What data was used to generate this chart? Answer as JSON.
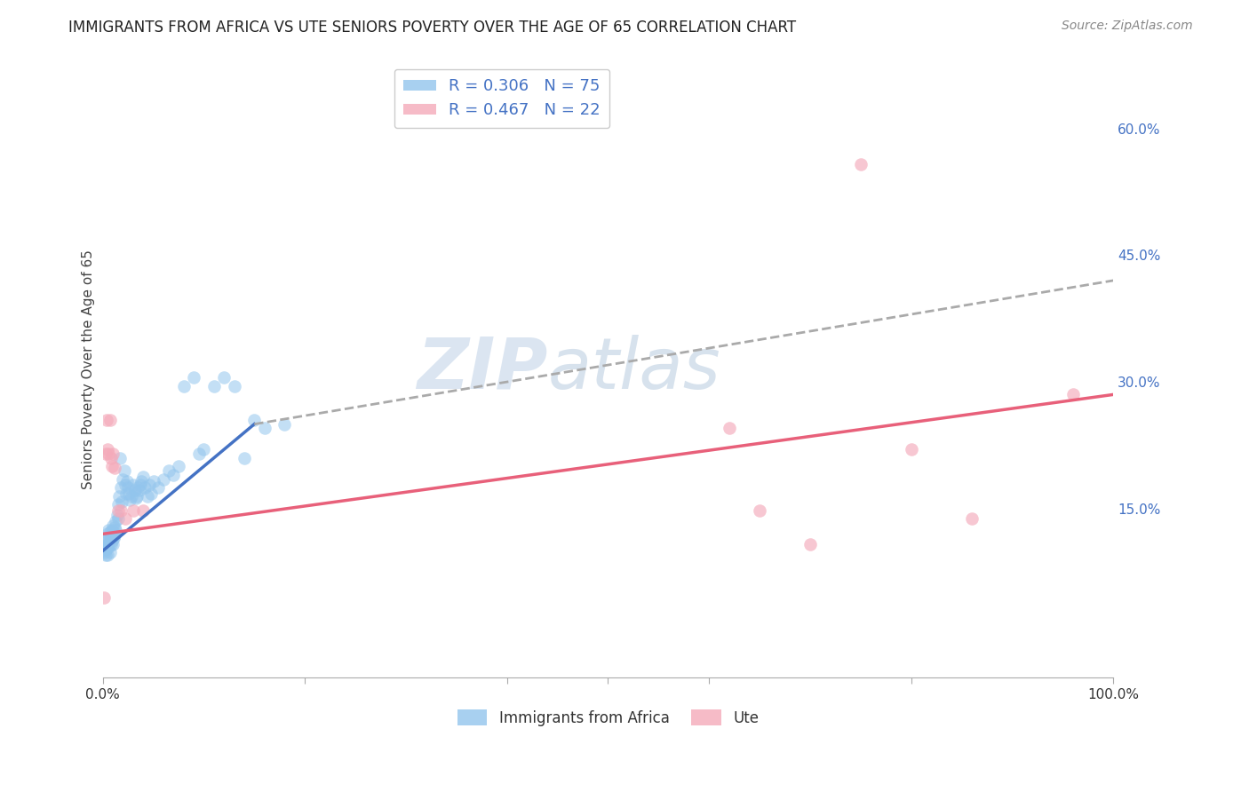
{
  "title": "IMMIGRANTS FROM AFRICA VS UTE SENIORS POVERTY OVER THE AGE OF 65 CORRELATION CHART",
  "source": "Source: ZipAtlas.com",
  "xlabel": "Immigrants from Africa",
  "ylabel": "Seniors Poverty Over the Age of 65",
  "watermark_zip": "ZIP",
  "watermark_atlas": "atlas",
  "xlim": [
    0.0,
    1.0
  ],
  "ylim": [
    -0.05,
    0.68
  ],
  "blue_R": 0.306,
  "blue_N": 75,
  "pink_R": 0.467,
  "pink_N": 22,
  "blue_color": "#92C5ED",
  "pink_color": "#F4AABA",
  "blue_line_color": "#4472C4",
  "pink_line_color": "#E8607A",
  "dashed_line_color": "#AAAAAA",
  "background_color": "#FFFFFF",
  "grid_color": "#C8C8C8",
  "legend_text_color": "#4472C4",
  "blue_line_x0": 0.0,
  "blue_line_y0": 0.1,
  "blue_line_x1": 0.15,
  "blue_line_y1": 0.25,
  "pink_line_x0": 0.0,
  "pink_line_y0": 0.12,
  "pink_line_x1": 1.0,
  "pink_line_y1": 0.285,
  "dash_line_x0": 0.15,
  "dash_line_y0": 0.25,
  "dash_line_x1": 1.0,
  "dash_line_y1": 0.42,
  "blue_scatter_x": [
    0.001,
    0.002,
    0.002,
    0.003,
    0.003,
    0.004,
    0.004,
    0.004,
    0.005,
    0.005,
    0.005,
    0.006,
    0.006,
    0.007,
    0.007,
    0.007,
    0.008,
    0.008,
    0.009,
    0.009,
    0.01,
    0.01,
    0.01,
    0.011,
    0.011,
    0.012,
    0.012,
    0.013,
    0.013,
    0.014,
    0.015,
    0.015,
    0.016,
    0.017,
    0.018,
    0.019,
    0.02,
    0.021,
    0.022,
    0.023,
    0.024,
    0.025,
    0.026,
    0.027,
    0.028,
    0.03,
    0.032,
    0.033,
    0.034,
    0.035,
    0.036,
    0.037,
    0.038,
    0.04,
    0.042,
    0.044,
    0.046,
    0.048,
    0.05,
    0.055,
    0.06,
    0.065,
    0.07,
    0.075,
    0.08,
    0.09,
    0.095,
    0.1,
    0.11,
    0.12,
    0.13,
    0.14,
    0.15,
    0.16,
    0.18
  ],
  "blue_scatter_y": [
    0.1,
    0.098,
    0.105,
    0.112,
    0.095,
    0.108,
    0.102,
    0.115,
    0.12,
    0.108,
    0.095,
    0.125,
    0.105,
    0.115,
    0.122,
    0.098,
    0.118,
    0.108,
    0.125,
    0.112,
    0.118,
    0.108,
    0.13,
    0.122,
    0.115,
    0.128,
    0.118,
    0.135,
    0.125,
    0.142,
    0.155,
    0.138,
    0.165,
    0.21,
    0.175,
    0.158,
    0.185,
    0.195,
    0.178,
    0.168,
    0.182,
    0.175,
    0.168,
    0.16,
    0.165,
    0.178,
    0.172,
    0.162,
    0.165,
    0.175,
    0.172,
    0.178,
    0.182,
    0.188,
    0.175,
    0.165,
    0.178,
    0.168,
    0.182,
    0.175,
    0.185,
    0.195,
    0.19,
    0.2,
    0.295,
    0.305,
    0.215,
    0.22,
    0.295,
    0.305,
    0.295,
    0.21,
    0.255,
    0.245,
    0.25
  ],
  "pink_scatter_x": [
    0.001,
    0.003,
    0.004,
    0.005,
    0.006,
    0.007,
    0.008,
    0.009,
    0.01,
    0.012,
    0.015,
    0.018,
    0.022,
    0.03,
    0.04,
    0.62,
    0.65,
    0.7,
    0.75,
    0.8,
    0.86,
    0.96
  ],
  "pink_scatter_y": [
    0.045,
    0.215,
    0.255,
    0.22,
    0.215,
    0.255,
    0.21,
    0.2,
    0.215,
    0.198,
    0.148,
    0.148,
    0.138,
    0.148,
    0.148,
    0.245,
    0.148,
    0.108,
    0.558,
    0.22,
    0.138,
    0.285
  ]
}
